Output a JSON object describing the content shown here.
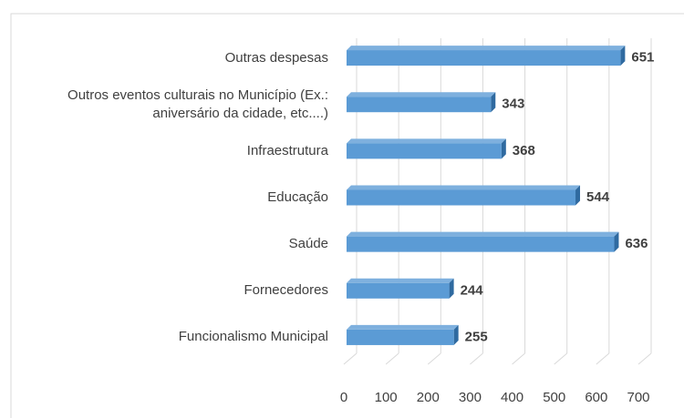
{
  "chart_data": {
    "type": "bar",
    "orientation": "horizontal",
    "categories": [
      "Outras despesas",
      "Outros eventos culturais no Município (Ex.: aniversário da cidade, etc....)",
      "Infraestrutura",
      "Educação",
      "Saúde",
      "Fornecedores",
      "Funcionalismo Municipal"
    ],
    "values": [
      651,
      343,
      368,
      544,
      636,
      244,
      255
    ],
    "color": "#5b9bd5",
    "xlim": [
      0,
      700
    ],
    "xticks": [
      0,
      100,
      200,
      300,
      400,
      500,
      600,
      700
    ],
    "grid": true
  }
}
